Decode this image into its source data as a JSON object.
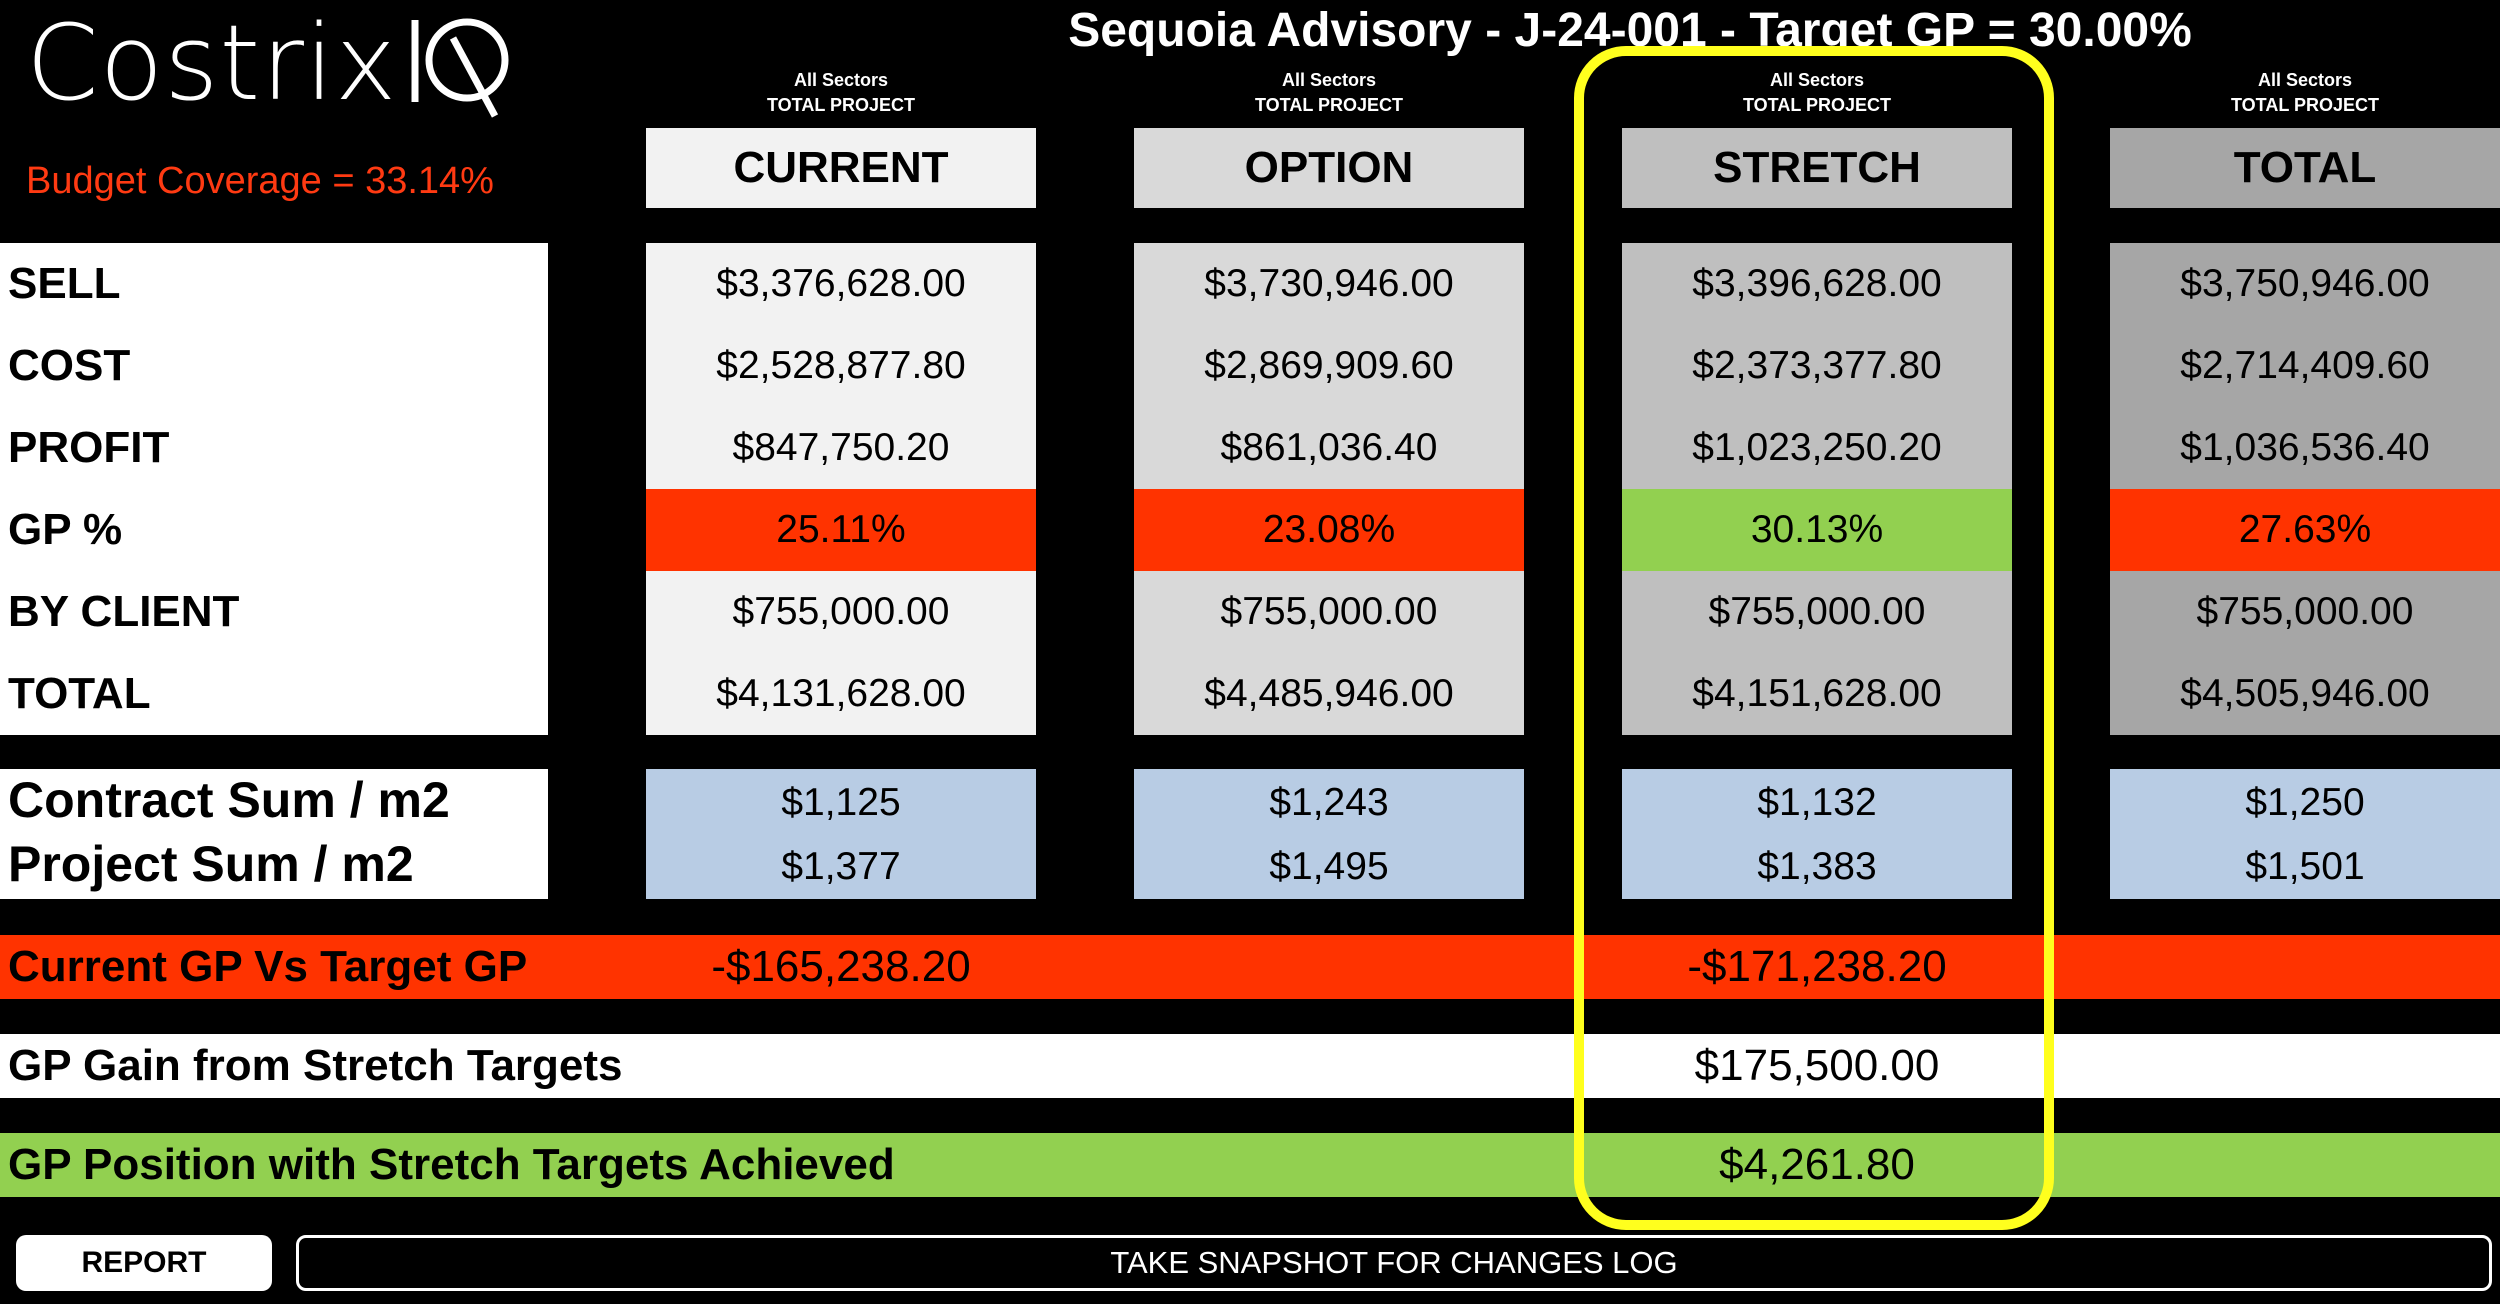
{
  "logo": {
    "text": "CostrixIQ",
    "wordmark": "Costrix"
  },
  "title": "Sequoia Advisory - J-24-001 - Target GP = 30.00%",
  "budget_coverage": "Budget Coverage = 33.14%",
  "row_labels": [
    "SELL",
    "COST",
    "PROFIT",
    "GP %",
    "BY CLIENT",
    "TOTAL"
  ],
  "m2_labels": [
    "Contract Sum / m2",
    "Project Sum / m2"
  ],
  "columns": [
    {
      "caption_line1": "All Sectors",
      "caption_line2": "TOTAL PROJECT",
      "header": "CURRENT",
      "header_bg": "#f2f2f2",
      "body_bg": "#f2f2f2",
      "sell": "$3,376,628.00",
      "cost": "$2,528,877.80",
      "profit": "$847,750.20",
      "gp": "25.11%",
      "gp_bg": "#ff3300",
      "by_client": "$755,000.00",
      "total": "$4,131,628.00",
      "contract_m2": "$1,125",
      "project_m2": "$1,377"
    },
    {
      "caption_line1": "All Sectors",
      "caption_line2": "TOTAL PROJECT",
      "header": "OPTION",
      "header_bg": "#d9d9d9",
      "body_bg": "#d9d9d9",
      "sell": "$3,730,946.00",
      "cost": "$2,869,909.60",
      "profit": "$861,036.40",
      "gp": "23.08%",
      "gp_bg": "#ff3300",
      "by_client": "$755,000.00",
      "total": "$4,485,946.00",
      "contract_m2": "$1,243",
      "project_m2": "$1,495"
    },
    {
      "caption_line1": "All Sectors",
      "caption_line2": "TOTAL PROJECT",
      "header": "STRETCH",
      "header_bg": "#bfbfbf",
      "body_bg": "#bfbfbf",
      "sell": "$3,396,628.00",
      "cost": "$2,373,377.80",
      "profit": "$1,023,250.20",
      "gp": "30.13%",
      "gp_bg": "#92d050",
      "by_client": "$755,000.00",
      "total": "$4,151,628.00",
      "contract_m2": "$1,132",
      "project_m2": "$1,383"
    },
    {
      "caption_line1": "All Sectors",
      "caption_line2": "TOTAL PROJECT",
      "header": "TOTAL",
      "header_bg": "#a6a6a6",
      "body_bg": "#a6a6a6",
      "sell": "$3,750,946.00",
      "cost": "$2,714,409.60",
      "profit": "$1,036,536.40",
      "gp": "27.63%",
      "gp_bg": "#ff3300",
      "by_client": "$755,000.00",
      "total": "$4,505,946.00",
      "contract_m2": "$1,250",
      "project_m2": "$1,501"
    }
  ],
  "current_vs_target": {
    "label": "Current GP Vs Target GP",
    "current_value": "-$165,238.20",
    "stretch_value": "-$171,238.20",
    "bg": "#ff3300"
  },
  "gp_gain": {
    "label": "GP Gain from Stretch Targets",
    "value": "$175,500.00",
    "bg": "#ffffff"
  },
  "gp_position": {
    "label": "GP Position with Stretch Targets Achieved",
    "value": "$4,261.80",
    "bg": "#92d050"
  },
  "buttons": {
    "report": "REPORT",
    "snapshot": "TAKE SNAPSHOT FOR CHANGES LOG"
  },
  "colors": {
    "highlight": "#ffff1e",
    "budget_text": "#ff3a12",
    "m2_bg": "#b8cce4"
  }
}
